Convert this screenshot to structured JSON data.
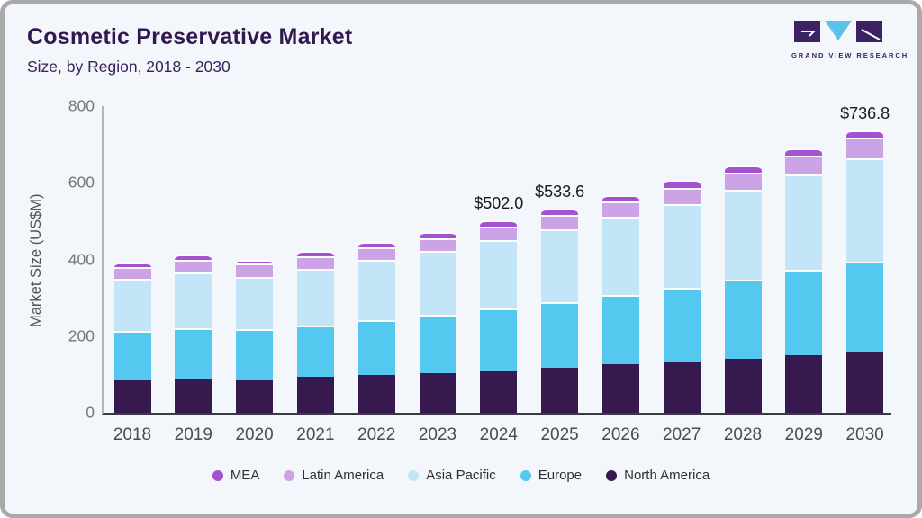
{
  "header": {
    "title": "Cosmetic Preservative Market",
    "subtitle": "Size, by Region, 2018 - 2030",
    "logo_text": "GRAND VIEW RESEARCH"
  },
  "colors": {
    "card_bg": "#f3f6fa",
    "frame_border": "#a9a9a9",
    "title_text": "#321850",
    "y_axis_line": "#b5b5b5",
    "x_axis_line": "#3a3a44",
    "logo_purple": "#3b2262",
    "logo_blue": "#5ec1e8",
    "tick_text": "#76777c",
    "annotation_text": "#181820"
  },
  "chart_data": {
    "type": "bar",
    "stacked": true,
    "grid": false,
    "legend_position": "bottom",
    "ylabel": "Market Size (US$M)",
    "ylim": [
      0,
      800
    ],
    "yticks": [
      0,
      200,
      400,
      600,
      800
    ],
    "categories": [
      "2018",
      "2019",
      "2020",
      "2021",
      "2022",
      "2023",
      "2024",
      "2025",
      "2026",
      "2027",
      "2028",
      "2029",
      "2030"
    ],
    "series": [
      {
        "name": "North America",
        "color": "#36194f",
        "values": [
          88,
          90,
          88,
          93,
          98,
          104,
          110,
          118,
          127,
          133,
          141,
          151,
          159
        ]
      },
      {
        "name": "Europe",
        "color": "#55c8f0",
        "values": [
          125,
          131,
          130,
          135,
          144,
          152,
          162,
          170,
          180,
          193,
          207,
          222,
          235
        ]
      },
      {
        "name": "Asia Pacific",
        "color": "#c2e6f7",
        "values": [
          136,
          146,
          136,
          147,
          158,
          167,
          178,
          190,
          204,
          219,
          234,
          249,
          271
        ]
      },
      {
        "name": "Latin America",
        "color": "#cba3e6",
        "values": [
          30,
          31,
          35,
          33,
          31,
          33,
          35,
          38,
          40,
          42,
          45,
          49,
          54
        ]
      },
      {
        "name": "MEA",
        "color": "#a551d0",
        "values": [
          13,
          14,
          11,
          14,
          16,
          15,
          17,
          17.6,
          17,
          20,
          18,
          19,
          17.8
        ]
      }
    ],
    "totals": [
      392,
      412,
      400,
      422,
      447,
      471,
      502,
      533.6,
      568,
      607,
      645,
      690,
      736.8
    ],
    "annotations": [
      {
        "category": "2024",
        "label": "$502.0"
      },
      {
        "category": "2025",
        "label": "$533.6"
      },
      {
        "category": "2030",
        "label": "$736.8"
      }
    ],
    "legend_order": [
      "MEA",
      "Latin America",
      "Asia Pacific",
      "Europe",
      "North America"
    ]
  }
}
